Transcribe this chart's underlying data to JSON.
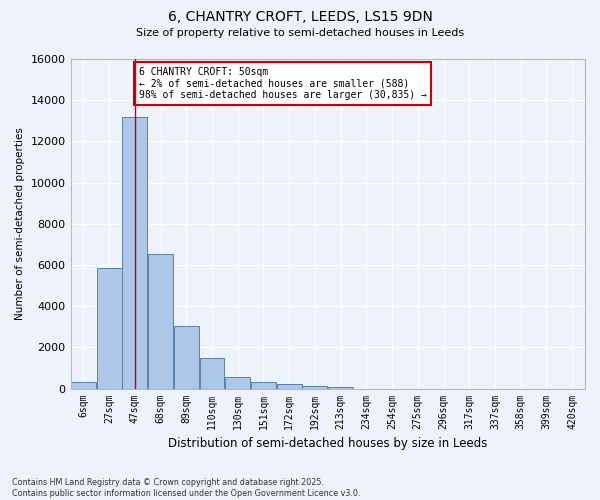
{
  "title_line1": "6, CHANTRY CROFT, LEEDS, LS15 9DN",
  "title_line2": "Size of property relative to semi-detached houses in Leeds",
  "xlabel": "Distribution of semi-detached houses by size in Leeds",
  "ylabel": "Number of semi-detached properties",
  "bin_labels": [
    "6sqm",
    "27sqm",
    "47sqm",
    "68sqm",
    "89sqm",
    "110sqm",
    "130sqm",
    "151sqm",
    "172sqm",
    "192sqm",
    "213sqm",
    "234sqm",
    "254sqm",
    "275sqm",
    "296sqm",
    "317sqm",
    "337sqm",
    "358sqm",
    "399sqm",
    "420sqm"
  ],
  "bar_heights": [
    300,
    5850,
    13200,
    6550,
    3050,
    1480,
    580,
    310,
    230,
    120,
    90,
    0,
    0,
    0,
    0,
    0,
    0,
    0,
    0,
    0
  ],
  "bar_color": "#aec6e8",
  "bar_edge_color": "#5580b0",
  "property_bar_index": 2,
  "property_line_color": "#cc0000",
  "annotation_text": "6 CHANTRY CROFT: 50sqm\n← 2% of semi-detached houses are smaller (588)\n98% of semi-detached houses are larger (30,835) →",
  "annotation_box_color": "#ffffff",
  "annotation_box_edge_color": "#cc0000",
  "ylim": [
    0,
    16000
  ],
  "yticks": [
    0,
    2000,
    4000,
    6000,
    8000,
    10000,
    12000,
    14000,
    16000
  ],
  "background_color": "#eef2fa",
  "grid_color": "#ffffff",
  "footer_line1": "Contains HM Land Registry data © Crown copyright and database right 2025.",
  "footer_line2": "Contains public sector information licensed under the Open Government Licence v3.0."
}
